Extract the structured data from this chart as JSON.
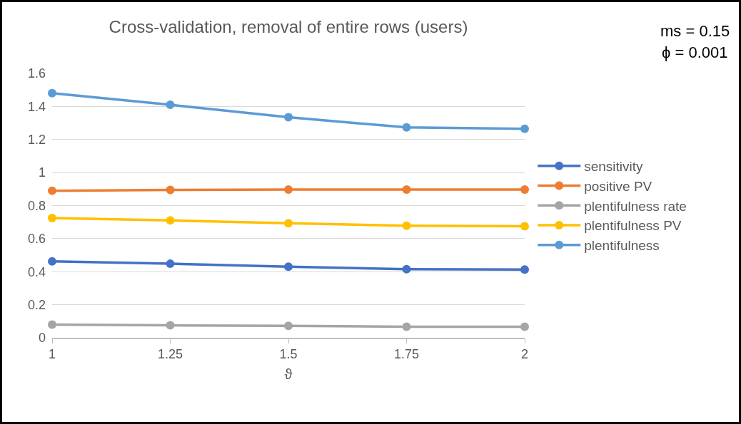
{
  "chart_data": {
    "type": "line",
    "title": "Cross-validation, removal of entire rows (users)",
    "xlabel": "ϑ",
    "annotations": [
      "ms = 0.15",
      "ϕ = 0.001"
    ],
    "x": [
      1,
      1.25,
      1.5,
      1.75,
      2
    ],
    "series": [
      {
        "name": "sensitivity",
        "color": "#4472c4",
        "values": [
          0.462,
          0.448,
          0.43,
          0.415,
          0.413
        ]
      },
      {
        "name": "positive PV",
        "color": "#ed7d31",
        "values": [
          0.89,
          0.895,
          0.897,
          0.897,
          0.897
        ]
      },
      {
        "name": "plentifulness rate",
        "color": "#a5a5a5",
        "values": [
          0.08,
          0.075,
          0.072,
          0.067,
          0.067
        ]
      },
      {
        "name": "plentifulness PV",
        "color": "#ffc000",
        "values": [
          0.725,
          0.71,
          0.693,
          0.678,
          0.675
        ]
      },
      {
        "name": "plentifulness",
        "color": "#5b9bd5",
        "values": [
          1.48,
          1.41,
          1.335,
          1.273,
          1.265
        ]
      }
    ],
    "xlim": [
      1,
      2
    ],
    "xticks": [
      1,
      1.25,
      1.5,
      1.75,
      2
    ],
    "ylim": [
      0,
      1.6
    ],
    "yticks": [
      0,
      0.2,
      0.4,
      0.6,
      0.8,
      1,
      1.2,
      1.4,
      1.6
    ],
    "grid": "y",
    "legend": "right",
    "marker": "circle",
    "line_style": "solid"
  }
}
